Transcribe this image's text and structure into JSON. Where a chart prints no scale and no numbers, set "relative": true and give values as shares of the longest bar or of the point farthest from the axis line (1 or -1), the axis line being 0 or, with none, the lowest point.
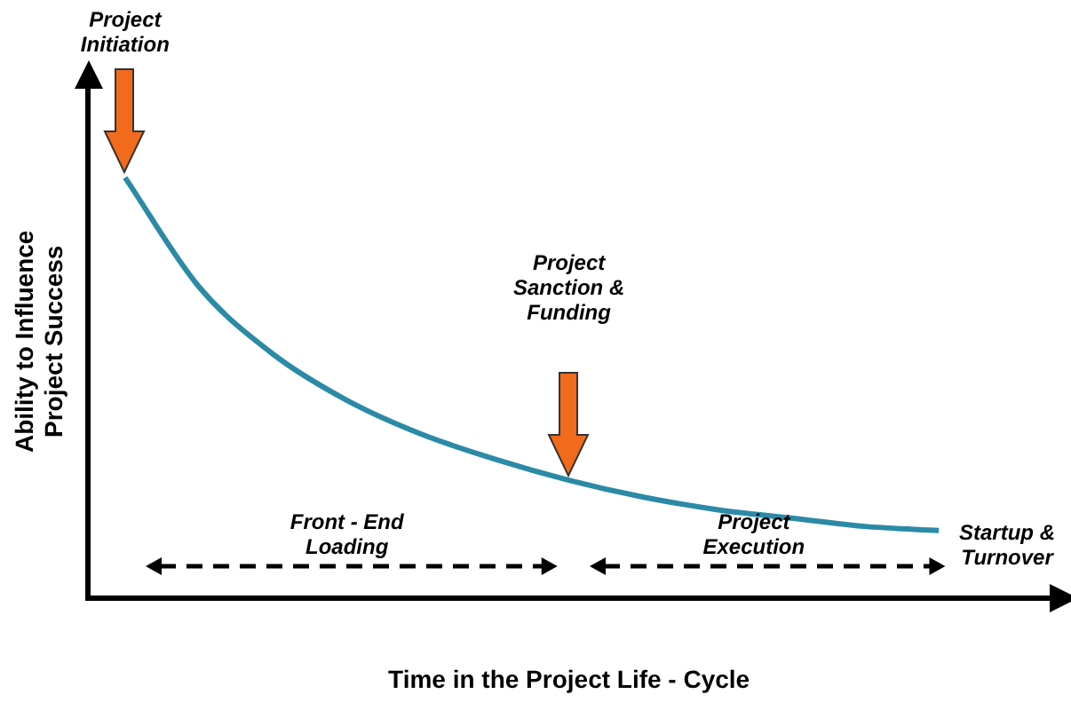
{
  "chart_data": {
    "type": "line",
    "relative": true,
    "xlabel": "Time in the Project Life - Cycle",
    "ylabel": "Ability to Influence Project Success",
    "categories": [
      null,
      null,
      null,
      null,
      null,
      null,
      null,
      null,
      null,
      null,
      null,
      null,
      null
    ],
    "values": [
      1,
      0.74,
      0.58,
      0.47,
      0.39,
      0.33,
      0.28,
      0.24,
      0.21,
      0.19,
      0.17,
      0.16,
      null
    ],
    "color": "#2b8aa6",
    "grid": false,
    "legend": false,
    "marker": "none",
    "line_style": "solid",
    "annotations": [
      "Project Initiation",
      "Project Sanction & Funding",
      "Front - End Loading",
      "Project Execution",
      "Startup & Turnover"
    ]
  }
}
